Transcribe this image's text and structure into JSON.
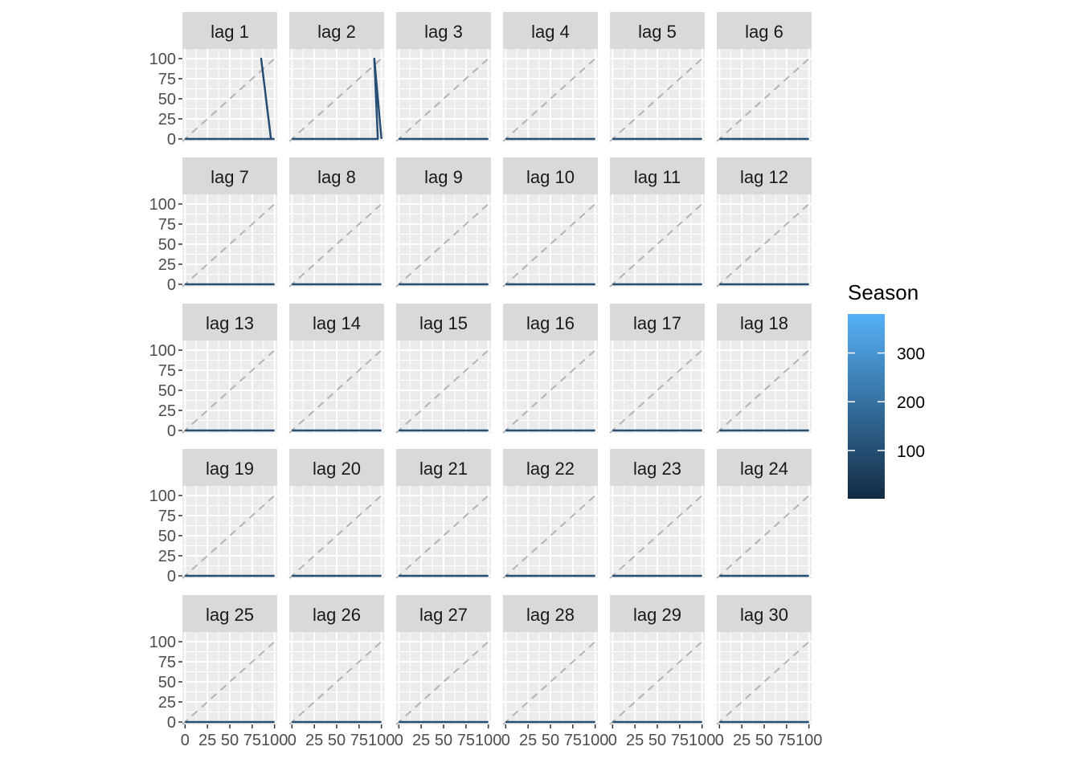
{
  "chart_data": {
    "type": "line",
    "facet_labels": [
      "lag 1",
      "lag 2",
      "lag 3",
      "lag 4",
      "lag 5",
      "lag 6",
      "lag 7",
      "lag 8",
      "lag 9",
      "lag 10",
      "lag 11",
      "lag 12",
      "lag 13",
      "lag 14",
      "lag 15",
      "lag 16",
      "lag 17",
      "lag 18",
      "lag 19",
      "lag 20",
      "lag 21",
      "lag 22",
      "lag 23",
      "lag 24",
      "lag 25",
      "lag 26",
      "lag 27",
      "lag 28",
      "lag 29",
      "lag 30"
    ],
    "xlim": [
      0,
      100
    ],
    "ylim": [
      0,
      100
    ],
    "x_ticks": [
      0,
      25,
      50,
      75,
      100
    ],
    "y_ticks": [
      0,
      25,
      50,
      75,
      100
    ],
    "reference_line": "y = x (dashed grey)",
    "grid": true,
    "legend": {
      "title": "Season",
      "placement": "right",
      "ticks": [
        100,
        200,
        300
      ],
      "range": [
        1,
        380
      ],
      "color_low": "#132b43",
      "color_high": "#56b1f7"
    },
    "series_color": "#264d73",
    "panels": [
      {
        "points": [
          [
            0,
            0
          ],
          [
            88,
            0
          ],
          [
            92,
            0
          ],
          [
            96,
            0
          ],
          [
            85,
            100
          ],
          [
            96,
            0
          ],
          [
            100,
            0
          ]
        ]
      },
      {
        "points": [
          [
            0,
            0
          ],
          [
            88,
            0
          ],
          [
            90,
            0
          ],
          [
            91,
            0
          ],
          [
            96,
            0
          ],
          [
            92,
            100
          ],
          [
            100,
            0
          ]
        ]
      },
      {
        "points": [
          [
            0,
            0
          ],
          [
            100,
            0
          ]
        ]
      },
      {
        "points": [
          [
            0,
            0
          ],
          [
            100,
            0
          ]
        ]
      },
      {
        "points": [
          [
            0,
            0
          ],
          [
            100,
            0
          ]
        ]
      },
      {
        "points": [
          [
            0,
            0
          ],
          [
            100,
            0
          ]
        ]
      },
      {
        "points": [
          [
            0,
            0
          ],
          [
            100,
            0
          ]
        ]
      },
      {
        "points": [
          [
            0,
            0
          ],
          [
            100,
            0
          ]
        ]
      },
      {
        "points": [
          [
            0,
            0
          ],
          [
            100,
            0
          ]
        ]
      },
      {
        "points": [
          [
            0,
            0
          ],
          [
            100,
            0
          ]
        ]
      },
      {
        "points": [
          [
            0,
            0
          ],
          [
            100,
            0
          ]
        ]
      },
      {
        "points": [
          [
            0,
            0
          ],
          [
            100,
            0
          ]
        ]
      },
      {
        "points": [
          [
            0,
            0
          ],
          [
            100,
            0
          ]
        ]
      },
      {
        "points": [
          [
            0,
            0
          ],
          [
            100,
            0
          ]
        ]
      },
      {
        "points": [
          [
            0,
            0
          ],
          [
            100,
            0
          ]
        ]
      },
      {
        "points": [
          [
            0,
            0
          ],
          [
            100,
            0
          ]
        ]
      },
      {
        "points": [
          [
            0,
            0
          ],
          [
            100,
            0
          ]
        ]
      },
      {
        "points": [
          [
            0,
            0
          ],
          [
            100,
            0
          ]
        ]
      },
      {
        "points": [
          [
            0,
            0
          ],
          [
            100,
            0
          ]
        ]
      },
      {
        "points": [
          [
            0,
            0
          ],
          [
            100,
            0
          ]
        ]
      },
      {
        "points": [
          [
            0,
            0
          ],
          [
            100,
            0
          ]
        ]
      },
      {
        "points": [
          [
            0,
            0
          ],
          [
            100,
            0
          ]
        ]
      },
      {
        "points": [
          [
            0,
            0
          ],
          [
            100,
            0
          ]
        ]
      },
      {
        "points": [
          [
            0,
            0
          ],
          [
            100,
            0
          ]
        ]
      },
      {
        "points": [
          [
            0,
            0
          ],
          [
            100,
            0
          ]
        ]
      },
      {
        "points": [
          [
            0,
            0
          ],
          [
            100,
            0
          ]
        ]
      },
      {
        "points": [
          [
            0,
            0
          ],
          [
            100,
            0
          ]
        ]
      },
      {
        "points": [
          [
            0,
            0
          ],
          [
            100,
            0
          ]
        ]
      },
      {
        "points": [
          [
            0,
            0
          ],
          [
            100,
            0
          ]
        ]
      },
      {
        "points": [
          [
            0,
            0
          ],
          [
            100,
            0
          ]
        ]
      }
    ]
  }
}
